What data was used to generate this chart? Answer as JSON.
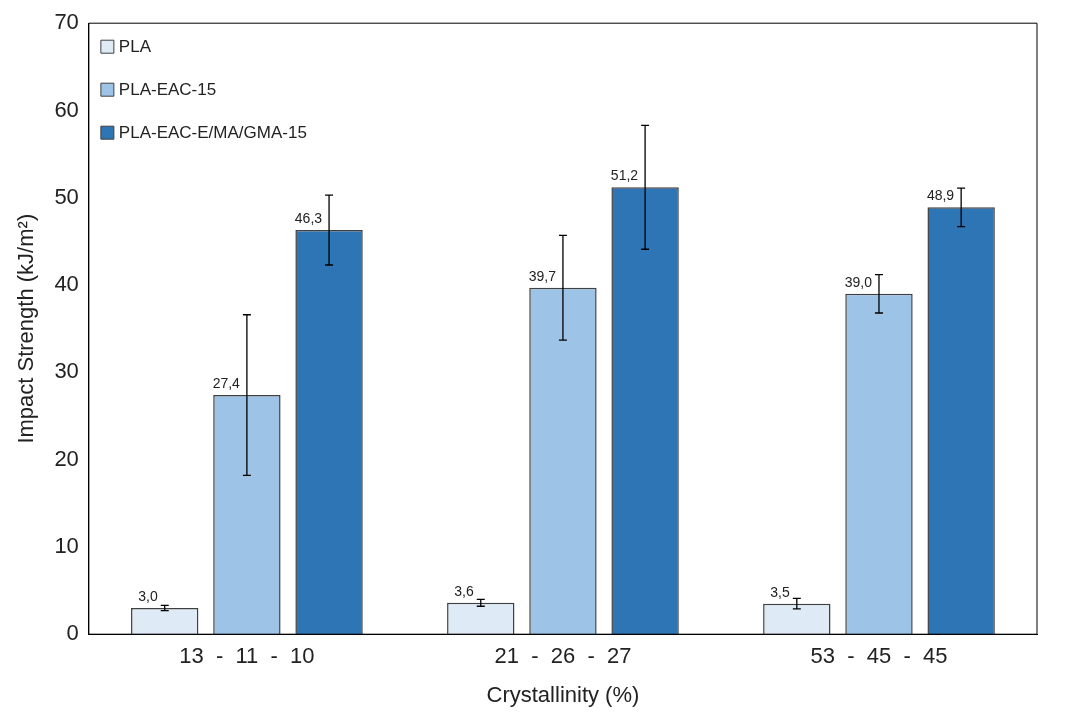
{
  "chart_data": {
    "type": "bar",
    "xlabel": "Crystallinity (%)",
    "ylabel": "Impact Strength (kJ/m²)",
    "categories": [
      "13  -  11  -  10",
      "21  -  26  -  27",
      "53  -  45  -  45"
    ],
    "series": [
      {
        "name": "PLA",
        "color": "#deebf7",
        "values": [
          3.0,
          3.6,
          3.5
        ],
        "errors": [
          0.3,
          0.4,
          0.6
        ],
        "value_labels": [
          "3,0",
          "3,6",
          "3,5"
        ]
      },
      {
        "name": "PLA-EAC-15",
        "color": "#9dc3e6",
        "values": [
          27.4,
          39.7,
          39.0
        ],
        "errors": [
          9.2,
          6.0,
          2.2
        ],
        "value_labels": [
          "27,4",
          "39,7",
          "39,0"
        ]
      },
      {
        "name": "PLA-EAC-E/MA/GMA-15",
        "color": "#2e75b6",
        "values": [
          46.3,
          51.2,
          48.9
        ],
        "errors": [
          4.0,
          7.1,
          2.2
        ],
        "value_labels": [
          "46,3",
          "51,2",
          "48,9"
        ]
      }
    ],
    "ylim": [
      0,
      70
    ],
    "yticks": [
      0,
      10,
      20,
      30,
      40,
      50,
      60,
      70
    ],
    "legend": "top left"
  }
}
